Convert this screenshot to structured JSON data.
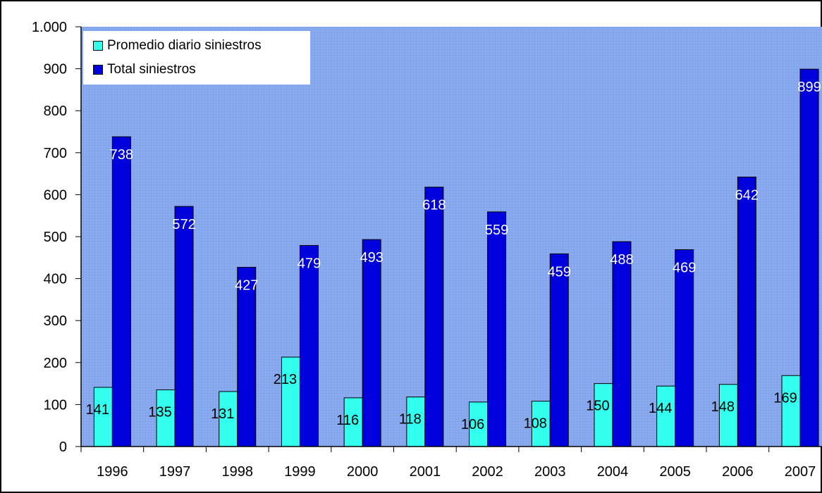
{
  "chart_data": {
    "type": "bar",
    "categories": [
      "1996",
      "1997",
      "1998",
      "1999",
      "2000",
      "2001",
      "2002",
      "2003",
      "2004",
      "2005",
      "2006",
      "2007"
    ],
    "series": [
      {
        "name": "Promedio diario siniestros",
        "values": [
          141,
          135,
          131,
          213,
          116,
          118,
          106,
          108,
          150,
          144,
          148,
          169
        ],
        "color": "#33ffee"
      },
      {
        "name": "Total siniestros",
        "values": [
          738,
          572,
          427,
          479,
          493,
          618,
          559,
          459,
          488,
          469,
          642,
          899
        ],
        "color": "#0000dd"
      }
    ],
    "ylim": [
      0,
      1000
    ],
    "yticks": [
      0,
      100,
      200,
      300,
      400,
      500,
      600,
      700,
      800,
      900,
      1000
    ],
    "ytick_labels": [
      "0",
      "100",
      "200",
      "300",
      "400",
      "500",
      "600",
      "700",
      "800",
      "900",
      "1.000"
    ],
    "legend_position": "top-left",
    "plot_background": "#86a8ee",
    "grid": false
  }
}
